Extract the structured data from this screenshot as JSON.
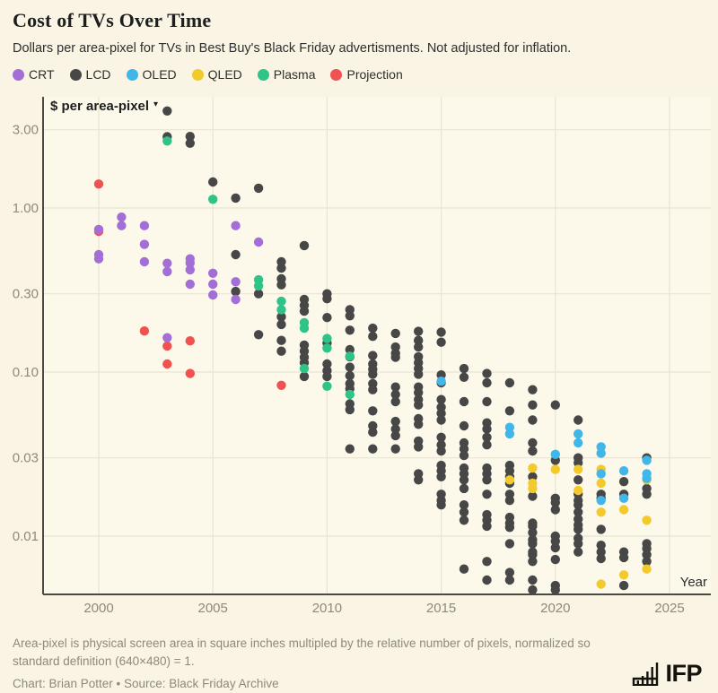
{
  "header": {
    "title": "Cost of TVs Over Time",
    "subtitle": "Dollars per area-pixel for TVs in Best Buy's Black Friday advertisments. Not adjusted for inflation."
  },
  "legend": [
    {
      "key": "crt",
      "label": "CRT",
      "color": "#a36fd6"
    },
    {
      "key": "lcd",
      "label": "LCD",
      "color": "#474747"
    },
    {
      "key": "oled",
      "label": "OLED",
      "color": "#41b6e9"
    },
    {
      "key": "qled",
      "label": "QLED",
      "color": "#f3ca2b"
    },
    {
      "key": "plasma",
      "label": "Plasma",
      "color": "#2ec488"
    },
    {
      "key": "proj",
      "label": "Projection",
      "color": "#f05252"
    }
  ],
  "chart_data": {
    "type": "scatter",
    "y_axis_label": "$ per area-pixel",
    "y_axis_caret": "▾",
    "x_axis_label": "Year",
    "y_scale": "log",
    "x_ticks": [
      2000,
      2005,
      2010,
      2015,
      2020,
      2025
    ],
    "y_ticks": [
      3.0,
      1.0,
      0.3,
      0.1,
      0.03,
      0.01
    ],
    "y_tick_labels": [
      "3.00",
      "1.00",
      "0.30",
      "0.10",
      "0.03",
      "0.01"
    ],
    "x_range": [
      1997.6,
      2026.8
    ],
    "y_range": [
      0.0043,
      4.8
    ],
    "grid": true,
    "legend_position": "top",
    "series": [
      {
        "key": "proj",
        "name": "Projection",
        "points": [
          [
            2000,
            1.4
          ],
          [
            2000,
            0.72
          ],
          [
            2002,
            0.178
          ],
          [
            2003,
            0.144
          ],
          [
            2003,
            0.112
          ],
          [
            2004,
            0.155
          ],
          [
            2004,
            0.098
          ],
          [
            2008,
            0.083
          ]
        ]
      },
      {
        "key": "lcd",
        "name": "LCD",
        "points": [
          [
            2003,
            3.9
          ],
          [
            2003,
            2.72
          ],
          [
            2004,
            2.73
          ],
          [
            2004,
            2.48
          ],
          [
            2005,
            1.44
          ],
          [
            2006,
            1.15
          ],
          [
            2006,
            0.52
          ],
          [
            2006,
            0.31
          ],
          [
            2007,
            1.32
          ],
          [
            2007,
            0.3
          ],
          [
            2007,
            0.169
          ],
          [
            2008,
            0.47
          ],
          [
            2008,
            0.43
          ],
          [
            2008,
            0.37
          ],
          [
            2008,
            0.34
          ],
          [
            2008,
            0.217
          ],
          [
            2008,
            0.195
          ],
          [
            2008,
            0.156
          ],
          [
            2008,
            0.134
          ],
          [
            2009,
            0.59
          ],
          [
            2009,
            0.277
          ],
          [
            2009,
            0.255
          ],
          [
            2009,
            0.235
          ],
          [
            2009,
            0.146
          ],
          [
            2009,
            0.134
          ],
          [
            2009,
            0.123
          ],
          [
            2009,
            0.114
          ],
          [
            2009,
            0.094
          ],
          [
            2010,
            0.3
          ],
          [
            2010,
            0.28
          ],
          [
            2010,
            0.215
          ],
          [
            2010,
            0.15
          ],
          [
            2010,
            0.112
          ],
          [
            2010,
            0.102
          ],
          [
            2010,
            0.094
          ],
          [
            2011,
            0.24
          ],
          [
            2011,
            0.22
          ],
          [
            2011,
            0.18
          ],
          [
            2011,
            0.137
          ],
          [
            2011,
            0.124
          ],
          [
            2011,
            0.107
          ],
          [
            2011,
            0.095
          ],
          [
            2011,
            0.085
          ],
          [
            2011,
            0.079
          ],
          [
            2011,
            0.064
          ],
          [
            2011,
            0.059
          ],
          [
            2011,
            0.034
          ],
          [
            2012,
            0.185
          ],
          [
            2012,
            0.165
          ],
          [
            2012,
            0.126
          ],
          [
            2012,
            0.112
          ],
          [
            2012,
            0.104
          ],
          [
            2012,
            0.097
          ],
          [
            2012,
            0.085
          ],
          [
            2012,
            0.078
          ],
          [
            2012,
            0.058
          ],
          [
            2012,
            0.047
          ],
          [
            2012,
            0.043
          ],
          [
            2012,
            0.034
          ],
          [
            2013,
            0.172
          ],
          [
            2013,
            0.142
          ],
          [
            2013,
            0.13
          ],
          [
            2013,
            0.123
          ],
          [
            2013,
            0.081
          ],
          [
            2013,
            0.073
          ],
          [
            2013,
            0.066
          ],
          [
            2013,
            0.05
          ],
          [
            2013,
            0.045
          ],
          [
            2013,
            0.041
          ],
          [
            2013,
            0.034
          ],
          [
            2014,
            0.177
          ],
          [
            2014,
            0.156
          ],
          [
            2014,
            0.142
          ],
          [
            2014,
            0.124
          ],
          [
            2014,
            0.114
          ],
          [
            2014,
            0.105
          ],
          [
            2014,
            0.097
          ],
          [
            2014,
            0.081
          ],
          [
            2014,
            0.075
          ],
          [
            2014,
            0.068
          ],
          [
            2014,
            0.063
          ],
          [
            2014,
            0.052
          ],
          [
            2014,
            0.048
          ],
          [
            2014,
            0.038
          ],
          [
            2014,
            0.035
          ],
          [
            2014,
            0.024
          ],
          [
            2014,
            0.022
          ],
          [
            2015,
            0.175
          ],
          [
            2015,
            0.152
          ],
          [
            2015,
            0.096
          ],
          [
            2015,
            0.086
          ],
          [
            2015,
            0.068
          ],
          [
            2015,
            0.061
          ],
          [
            2015,
            0.056
          ],
          [
            2015,
            0.051
          ],
          [
            2015,
            0.04
          ],
          [
            2015,
            0.036
          ],
          [
            2015,
            0.033
          ],
          [
            2015,
            0.027
          ],
          [
            2015,
            0.025
          ],
          [
            2015,
            0.023
          ],
          [
            2015,
            0.018
          ],
          [
            2015,
            0.0165
          ],
          [
            2015,
            0.0155
          ],
          [
            2016,
            0.105
          ],
          [
            2016,
            0.093
          ],
          [
            2016,
            0.066
          ],
          [
            2016,
            0.047
          ],
          [
            2016,
            0.037
          ],
          [
            2016,
            0.034
          ],
          [
            2016,
            0.031
          ],
          [
            2016,
            0.026
          ],
          [
            2016,
            0.024
          ],
          [
            2016,
            0.022
          ],
          [
            2016,
            0.0195
          ],
          [
            2016,
            0.0155
          ],
          [
            2016,
            0.014
          ],
          [
            2016,
            0.0125
          ],
          [
            2016,
            0.0063
          ],
          [
            2017,
            0.098
          ],
          [
            2017,
            0.086
          ],
          [
            2017,
            0.066
          ],
          [
            2017,
            0.049
          ],
          [
            2017,
            0.045
          ],
          [
            2017,
            0.04
          ],
          [
            2017,
            0.036
          ],
          [
            2017,
            0.026
          ],
          [
            2017,
            0.024
          ],
          [
            2017,
            0.022
          ],
          [
            2017,
            0.018
          ],
          [
            2017,
            0.0135
          ],
          [
            2017,
            0.0125
          ],
          [
            2017,
            0.0115
          ],
          [
            2017,
            0.007
          ],
          [
            2017,
            0.0054
          ],
          [
            2018,
            0.086
          ],
          [
            2018,
            0.058
          ],
          [
            2018,
            0.027
          ],
          [
            2018,
            0.025
          ],
          [
            2018,
            0.023
          ],
          [
            2018,
            0.021
          ],
          [
            2018,
            0.018
          ],
          [
            2018,
            0.0165
          ],
          [
            2018,
            0.013
          ],
          [
            2018,
            0.012
          ],
          [
            2018,
            0.0113
          ],
          [
            2018,
            0.009
          ],
          [
            2018,
            0.006
          ],
          [
            2018,
            0.0054
          ],
          [
            2019,
            0.078
          ],
          [
            2019,
            0.063
          ],
          [
            2019,
            0.051
          ],
          [
            2019,
            0.037
          ],
          [
            2019,
            0.033
          ],
          [
            2019,
            0.023
          ],
          [
            2019,
            0.0175
          ],
          [
            2019,
            0.012
          ],
          [
            2019,
            0.0115
          ],
          [
            2019,
            0.0105
          ],
          [
            2019,
            0.0095
          ],
          [
            2019,
            0.009
          ],
          [
            2019,
            0.008
          ],
          [
            2019,
            0.0077
          ],
          [
            2019,
            0.007
          ],
          [
            2019,
            0.0054
          ],
          [
            2019,
            0.0047
          ],
          [
            2020,
            0.063
          ],
          [
            2020,
            0.029
          ],
          [
            2020,
            0.017
          ],
          [
            2020,
            0.016
          ],
          [
            2020,
            0.0145
          ],
          [
            2020,
            0.01
          ],
          [
            2020,
            0.0093
          ],
          [
            2020,
            0.0085
          ],
          [
            2020,
            0.0072
          ],
          [
            2020,
            0.005
          ],
          [
            2020,
            0.0047
          ],
          [
            2021,
            0.051
          ],
          [
            2021,
            0.03
          ],
          [
            2021,
            0.028
          ],
          [
            2021,
            0.022
          ],
          [
            2021,
            0.018
          ],
          [
            2021,
            0.0165
          ],
          [
            2021,
            0.0155
          ],
          [
            2021,
            0.014
          ],
          [
            2021,
            0.0127
          ],
          [
            2021,
            0.0117
          ],
          [
            2021,
            0.011
          ],
          [
            2021,
            0.0097
          ],
          [
            2021,
            0.009
          ],
          [
            2021,
            0.008
          ],
          [
            2022,
            0.018
          ],
          [
            2022,
            0.017
          ],
          [
            2022,
            0.011
          ],
          [
            2022,
            0.0088
          ],
          [
            2022,
            0.008
          ],
          [
            2022,
            0.0073
          ],
          [
            2023,
            0.0215
          ],
          [
            2023,
            0.018
          ],
          [
            2023,
            0.008
          ],
          [
            2023,
            0.0074
          ],
          [
            2023,
            0.005
          ],
          [
            2024,
            0.03
          ],
          [
            2024,
            0.0195
          ],
          [
            2024,
            0.018
          ],
          [
            2024,
            0.009
          ],
          [
            2024,
            0.0084
          ],
          [
            2024,
            0.0077
          ],
          [
            2024,
            0.007
          ]
        ]
      },
      {
        "key": "plasma",
        "name": "Plasma",
        "points": [
          [
            2003,
            2.56
          ],
          [
            2005,
            1.13
          ],
          [
            2007,
            0.365
          ],
          [
            2007,
            0.335
          ],
          [
            2008,
            0.27
          ],
          [
            2008,
            0.24
          ],
          [
            2009,
            0.2
          ],
          [
            2009,
            0.185
          ],
          [
            2009,
            0.105
          ],
          [
            2010,
            0.16
          ],
          [
            2010,
            0.14
          ],
          [
            2010,
            0.082
          ],
          [
            2011,
            0.125
          ],
          [
            2011,
            0.073
          ]
        ]
      },
      {
        "key": "crt",
        "name": "CRT",
        "points": [
          [
            2000,
            0.74
          ],
          [
            2000,
            0.52
          ],
          [
            2000,
            0.49
          ],
          [
            2001,
            0.88
          ],
          [
            2001,
            0.78
          ],
          [
            2002,
            0.78
          ],
          [
            2002,
            0.6
          ],
          [
            2002,
            0.47
          ],
          [
            2003,
            0.46
          ],
          [
            2003,
            0.41
          ],
          [
            2003,
            0.162
          ],
          [
            2004,
            0.49
          ],
          [
            2004,
            0.462
          ],
          [
            2004,
            0.42
          ],
          [
            2004,
            0.343
          ],
          [
            2005,
            0.4
          ],
          [
            2005,
            0.343
          ],
          [
            2005,
            0.295
          ],
          [
            2006,
            0.78
          ],
          [
            2006,
            0.355
          ],
          [
            2006,
            0.277
          ],
          [
            2007,
            0.62
          ]
        ]
      },
      {
        "key": "qled",
        "name": "QLED",
        "points": [
          [
            2018,
            0.022
          ],
          [
            2019,
            0.026
          ],
          [
            2019,
            0.021
          ],
          [
            2019,
            0.0195
          ],
          [
            2020,
            0.0255
          ],
          [
            2021,
            0.0255
          ],
          [
            2021,
            0.019
          ],
          [
            2022,
            0.0255
          ],
          [
            2022,
            0.021
          ],
          [
            2022,
            0.014
          ],
          [
            2022,
            0.0051
          ],
          [
            2023,
            0.0145
          ],
          [
            2023,
            0.0058
          ],
          [
            2024,
            0.022
          ],
          [
            2024,
            0.0125
          ],
          [
            2024,
            0.0063
          ]
        ]
      },
      {
        "key": "oled",
        "name": "OLED",
        "points": [
          [
            2015,
            0.088
          ],
          [
            2018,
            0.046
          ],
          [
            2018,
            0.042
          ],
          [
            2020,
            0.0315
          ],
          [
            2021,
            0.042
          ],
          [
            2021,
            0.037
          ],
          [
            2022,
            0.035
          ],
          [
            2022,
            0.032
          ],
          [
            2022,
            0.024
          ],
          [
            2022,
            0.0165
          ],
          [
            2023,
            0.025
          ],
          [
            2023,
            0.017
          ],
          [
            2024,
            0.029
          ],
          [
            2024,
            0.024
          ],
          [
            2024,
            0.0225
          ]
        ]
      }
    ]
  },
  "footer": {
    "note": "Area-pixel is physical screen area in square inches multipled by the relative number of pixels, normalized so standard definition (640×480) = 1.",
    "credit": "Chart: Brian Potter • Source: Black Friday Archive",
    "logo_text": "IFP"
  },
  "colors": {
    "page_bg": "#f9f4e3",
    "plot_bg": "#fcf8ea",
    "gridline": "#e9e4d3",
    "axis_line": "#4a4a44",
    "tick_text": "#8f8a77",
    "dark_text": "#2e2e2e"
  }
}
